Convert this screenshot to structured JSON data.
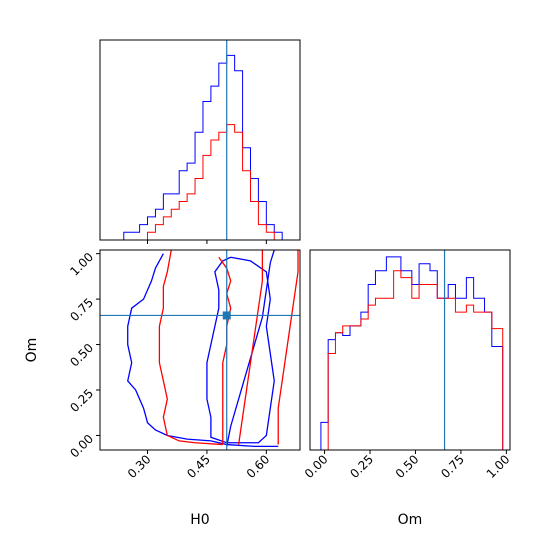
{
  "colors": {
    "series_a": "#0000ff",
    "series_b": "#ff0000",
    "truth": "#1f77b4"
  },
  "chart_data": [
    {
      "panel": "H0 marginal",
      "type": "histogram",
      "x_param": "H0",
      "xlim": [
        0.18,
        0.685
      ],
      "truth": 0.5,
      "bin_edges": [
        0.18,
        0.2,
        0.22,
        0.24,
        0.26,
        0.28,
        0.3,
        0.32,
        0.34,
        0.36,
        0.38,
        0.4,
        0.42,
        0.44,
        0.46,
        0.48,
        0.5,
        0.52,
        0.54,
        0.56,
        0.58,
        0.6,
        0.62,
        0.64,
        0.66,
        0.685
      ],
      "series": [
        {
          "color": "blue",
          "counts": [
            0,
            0,
            0,
            1,
            1,
            2,
            3,
            4,
            6,
            6,
            9,
            10,
            14,
            18,
            20,
            23,
            24,
            22,
            12,
            8,
            5,
            2,
            1,
            0,
            0
          ]
        },
        {
          "color": "red",
          "counts": [
            0,
            0,
            0,
            0,
            0,
            0,
            1,
            2,
            3,
            4,
            5,
            6,
            8,
            11,
            13,
            14,
            15,
            14,
            9,
            5,
            2,
            1,
            0,
            0,
            0
          ]
        }
      ]
    },
    {
      "panel": "H0 vs Om",
      "type": "contour",
      "x_param": "H0",
      "y_param": "Om",
      "xlim": [
        0.18,
        0.685
      ],
      "ylim": [
        -0.08,
        1.02
      ],
      "xticks": [
        "0.30",
        "0.45",
        "0.60"
      ],
      "yticks": [
        "0.00",
        "0.25",
        "0.50",
        "0.75",
        "1.00"
      ],
      "truth": {
        "H0": 0.5,
        "Om": 0.66
      },
      "series": [
        {
          "color": "blue",
          "contours": [
            [
              [
                0.51,
                0.98
              ],
              [
                0.56,
                0.96
              ],
              [
                0.6,
                0.9
              ],
              [
                0.61,
                0.75
              ],
              [
                0.6,
                0.6
              ],
              [
                0.61,
                0.45
              ],
              [
                0.62,
                0.3
              ],
              [
                0.61,
                0.15
              ],
              [
                0.6,
                0.0
              ],
              [
                0.58,
                -0.04
              ],
              [
                0.5,
                -0.04
              ],
              [
                0.46,
                -0.01
              ],
              [
                0.46,
                0.1
              ],
              [
                0.45,
                0.2
              ],
              [
                0.45,
                0.3
              ],
              [
                0.45,
                0.4
              ],
              [
                0.46,
                0.5
              ],
              [
                0.47,
                0.6
              ],
              [
                0.48,
                0.7
              ],
              [
                0.48,
                0.8
              ],
              [
                0.47,
                0.9
              ],
              [
                0.49,
                0.96
              ],
              [
                0.51,
                0.98
              ]
            ],
            [
              [
                0.34,
                1.0
              ],
              [
                0.32,
                0.92
              ],
              [
                0.31,
                0.85
              ],
              [
                0.3,
                0.8
              ],
              [
                0.29,
                0.75
              ],
              [
                0.26,
                0.7
              ],
              [
                0.25,
                0.6
              ],
              [
                0.25,
                0.5
              ],
              [
                0.26,
                0.4
              ],
              [
                0.25,
                0.3
              ],
              [
                0.27,
                0.25
              ],
              [
                0.29,
                0.15
              ],
              [
                0.3,
                0.07
              ],
              [
                0.32,
                0.03
              ],
              [
                0.35,
                0.0
              ],
              [
                0.4,
                -0.02
              ],
              [
                0.46,
                -0.03
              ],
              [
                0.5,
                -0.05
              ],
              [
                0.57,
                -0.06
              ],
              [
                0.63,
                -0.06
              ]
            ],
            [
              [
                0.5,
                -0.06
              ],
              [
                0.51,
                0.05
              ],
              [
                0.53,
                0.2
              ],
              [
                0.55,
                0.35
              ],
              [
                0.57,
                0.5
              ],
              [
                0.59,
                0.65
              ],
              [
                0.6,
                0.8
              ],
              [
                0.61,
                0.95
              ],
              [
                0.62,
                1.02
              ]
            ]
          ]
        },
        {
          "color": "red",
          "contours": [
            [
              [
                0.48,
                0.98
              ],
              [
                0.5,
                0.92
              ],
              [
                0.51,
                0.85
              ],
              [
                0.5,
                0.78
              ],
              [
                0.51,
                0.7
              ],
              [
                0.5,
                0.6
              ],
              [
                0.5,
                0.5
              ],
              [
                0.49,
                0.4
              ],
              [
                0.49,
                0.3
              ],
              [
                0.49,
                0.2
              ],
              [
                0.49,
                0.1
              ],
              [
                0.49,
                0.0
              ],
              [
                0.49,
                -0.05
              ]
            ],
            [
              [
                0.36,
                1.02
              ],
              [
                0.35,
                0.9
              ],
              [
                0.34,
                0.82
              ],
              [
                0.34,
                0.7
              ],
              [
                0.33,
                0.6
              ],
              [
                0.33,
                0.5
              ],
              [
                0.33,
                0.4
              ],
              [
                0.34,
                0.3
              ],
              [
                0.35,
                0.2
              ],
              [
                0.34,
                0.1
              ],
              [
                0.35,
                0.0
              ],
              [
                0.38,
                -0.03
              ],
              [
                0.42,
                -0.04
              ],
              [
                0.49,
                -0.05
              ]
            ],
            [
              [
                0.53,
                -0.05
              ],
              [
                0.54,
                0.1
              ],
              [
                0.55,
                0.25
              ],
              [
                0.56,
                0.4
              ],
              [
                0.57,
                0.55
              ],
              [
                0.58,
                0.7
              ],
              [
                0.59,
                0.85
              ],
              [
                0.59,
                1.02
              ]
            ],
            [
              [
                0.63,
                -0.05
              ],
              [
                0.63,
                0.15
              ],
              [
                0.64,
                0.3
              ],
              [
                0.65,
                0.45
              ],
              [
                0.66,
                0.6
              ],
              [
                0.67,
                0.75
              ],
              [
                0.68,
                0.9
              ],
              [
                0.68,
                1.02
              ]
            ]
          ]
        }
      ]
    },
    {
      "panel": "Om marginal",
      "type": "histogram",
      "x_param": "Om",
      "xlim": [
        -0.08,
        1.02
      ],
      "xticks": [
        "0.00",
        "0.25",
        "0.50",
        "0.75",
        "1.00"
      ],
      "truth": 0.66,
      "bin_edges": [
        -0.08,
        -0.02,
        0.02,
        0.06,
        0.1,
        0.14,
        0.2,
        0.24,
        0.28,
        0.34,
        0.38,
        0.42,
        0.48,
        0.52,
        0.58,
        0.62,
        0.68,
        0.72,
        0.78,
        0.82,
        0.88,
        0.92,
        0.98,
        1.02
      ],
      "series": [
        {
          "color": "blue",
          "counts": [
            0,
            2,
            8,
            8.5,
            8.3,
            9,
            10,
            12,
            13,
            14,
            14,
            13,
            12,
            13.5,
            13,
            11,
            12,
            11,
            12.5,
            11,
            10,
            7.5,
            0
          ]
        },
        {
          "color": "red",
          "counts": [
            0,
            0,
            7,
            8.5,
            9,
            9,
            9.5,
            10.5,
            11,
            11,
            13,
            12.5,
            11,
            12,
            12,
            11,
            11,
            10,
            10.5,
            10,
            10,
            8.8,
            0
          ]
        }
      ]
    }
  ],
  "labels": {
    "x_h0": "H0",
    "x_om": "Om",
    "y_om": "Om"
  }
}
